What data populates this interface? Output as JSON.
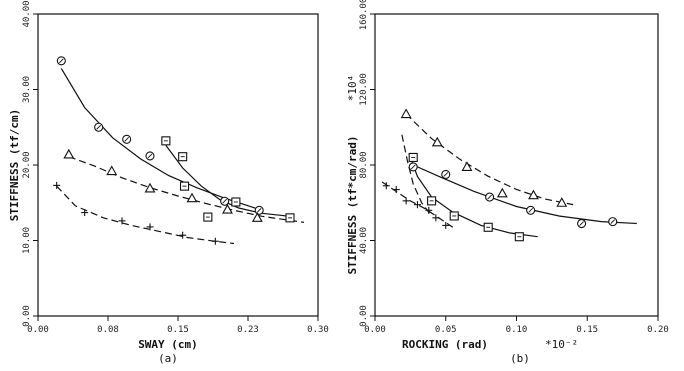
{
  "chart_data": [
    {
      "type": "scatter",
      "panel_label": "(a)",
      "xlabel": "SWAY (cm)",
      "ylabel": "STIFFNESS (tf/cm)",
      "y_multiplier": "",
      "x_multiplier": "",
      "xlim": [
        0,
        0.3
      ],
      "ylim": [
        0,
        40
      ],
      "x_ticks": [
        0,
        0.075,
        0.15,
        0.225,
        0.3
      ],
      "x_tick_labels": [
        "0.00",
        "0.08",
        "0.15",
        "0.23",
        "0.30"
      ],
      "y_ticks": [
        0,
        10,
        20,
        30,
        40
      ],
      "y_tick_labels": [
        "0.00",
        "10.00",
        "20.00",
        "30.00",
        "40.00"
      ],
      "series": [
        {
          "marker": "circle",
          "line": "solid",
          "points": [
            [
              0.025,
              33.8
            ],
            [
              0.065,
              25.0
            ],
            [
              0.095,
              23.4
            ],
            [
              0.12,
              21.2
            ],
            [
              0.2,
              15.2
            ],
            [
              0.237,
              14.0
            ]
          ],
          "curve": [
            [
              0.025,
              32.8
            ],
            [
              0.05,
              27.6
            ],
            [
              0.08,
              23.6
            ],
            [
              0.11,
              20.8
            ],
            [
              0.14,
              18.6
            ],
            [
              0.17,
              17.0
            ],
            [
              0.2,
              15.6
            ],
            [
              0.235,
              14.2
            ]
          ]
        },
        {
          "marker": "square",
          "line": "solid",
          "points": [
            [
              0.137,
              23.2
            ],
            [
              0.155,
              21.1
            ],
            [
              0.157,
              17.2
            ],
            [
              0.182,
              13.1
            ],
            [
              0.212,
              15.1
            ],
            [
              0.27,
              13.0
            ]
          ],
          "curve": [
            [
              0.137,
              22.6
            ],
            [
              0.155,
              19.6
            ],
            [
              0.175,
              17.2
            ],
            [
              0.195,
              15.4
            ],
            [
              0.215,
              14.3
            ],
            [
              0.24,
              13.6
            ],
            [
              0.27,
              13.2
            ]
          ]
        },
        {
          "marker": "triangle",
          "line": "dashed",
          "points": [
            [
              0.033,
              21.4
            ],
            [
              0.079,
              19.2
            ],
            [
              0.12,
              16.9
            ],
            [
              0.165,
              15.6
            ],
            [
              0.203,
              14.1
            ],
            [
              0.235,
              13.0
            ]
          ],
          "curve": [
            [
              0.033,
              21.1
            ],
            [
              0.06,
              19.9
            ],
            [
              0.09,
              18.3
            ],
            [
              0.12,
              17.0
            ],
            [
              0.15,
              15.9
            ],
            [
              0.18,
              14.9
            ],
            [
              0.21,
              14.0
            ],
            [
              0.24,
              13.2
            ],
            [
              0.285,
              12.4
            ]
          ]
        },
        {
          "marker": "plus",
          "line": "dashed",
          "points": [
            [
              0.02,
              17.3
            ],
            [
              0.05,
              13.7
            ],
            [
              0.09,
              12.6
            ],
            [
              0.12,
              11.8
            ],
            [
              0.155,
              10.7
            ],
            [
              0.19,
              9.9
            ]
          ],
          "curve": [
            [
              0.02,
              17.2
            ],
            [
              0.04,
              14.6
            ],
            [
              0.07,
              13.0
            ],
            [
              0.1,
              12.0
            ],
            [
              0.13,
              11.2
            ],
            [
              0.16,
              10.4
            ],
            [
              0.19,
              9.9
            ],
            [
              0.21,
              9.6
            ]
          ]
        }
      ]
    },
    {
      "type": "scatter",
      "panel_label": "(b)",
      "xlabel": "ROCKING (rad)",
      "ylabel": "STIFFNESS (tf*cm/rad)",
      "y_multiplier": "*10⁴",
      "x_multiplier": "*10⁻²",
      "xlim": [
        0,
        0.2
      ],
      "ylim": [
        0,
        160
      ],
      "x_ticks": [
        0,
        0.05,
        0.1,
        0.15,
        0.2
      ],
      "x_tick_labels": [
        "0.00",
        "0.05",
        "0.10",
        "0.15",
        "0.20"
      ],
      "y_ticks": [
        0,
        40,
        80,
        120,
        160
      ],
      "y_tick_labels": [
        "0.00",
        "40.00",
        "80.00",
        "120.00",
        "160.00"
      ],
      "series": [
        {
          "marker": "triangle",
          "line": "dashed",
          "points": [
            [
              0.022,
              107
            ],
            [
              0.044,
              92
            ],
            [
              0.065,
              79
            ],
            [
              0.09,
              65
            ],
            [
              0.112,
              64
            ],
            [
              0.132,
              60
            ]
          ],
          "curve": [
            [
              0.022,
              107
            ],
            [
              0.04,
              94
            ],
            [
              0.06,
              83
            ],
            [
              0.08,
              74
            ],
            [
              0.1,
              67
            ],
            [
              0.12,
              62
            ],
            [
              0.14,
              59
            ]
          ]
        },
        {
          "marker": "circle",
          "line": "solid",
          "points": [
            [
              0.027,
              79
            ],
            [
              0.05,
              75
            ],
            [
              0.081,
              63
            ],
            [
              0.11,
              56
            ],
            [
              0.146,
              49
            ],
            [
              0.168,
              50
            ]
          ],
          "curve": [
            [
              0.027,
              80
            ],
            [
              0.045,
              74
            ],
            [
              0.07,
              66
            ],
            [
              0.1,
              58
            ],
            [
              0.13,
              53
            ],
            [
              0.16,
              50
            ],
            [
              0.185,
              49
            ]
          ]
        },
        {
          "marker": "square",
          "line": "solid",
          "points": [
            [
              0.027,
              84
            ],
            [
              0.04,
              61
            ],
            [
              0.056,
              53
            ],
            [
              0.08,
              47
            ],
            [
              0.102,
              42
            ]
          ],
          "curve": [
            [
              0.024,
              86
            ],
            [
              0.03,
              74
            ],
            [
              0.04,
              63
            ],
            [
              0.055,
              55
            ],
            [
              0.075,
              48
            ],
            [
              0.095,
              44
            ],
            [
              0.115,
              42
            ]
          ]
        },
        {
          "marker": "plus",
          "line": "dashed",
          "points": [
            [
              0.008,
              69
            ],
            [
              0.015,
              67
            ],
            [
              0.022,
              61
            ],
            [
              0.03,
              59
            ],
            [
              0.038,
              56
            ],
            [
              0.043,
              52
            ],
            [
              0.05,
              48
            ]
          ],
          "curve": [
            [
              0.005,
              71
            ],
            [
              0.015,
              66
            ],
            [
              0.025,
              61
            ],
            [
              0.035,
              57
            ],
            [
              0.045,
              52
            ],
            [
              0.055,
              47
            ]
          ]
        },
        {
          "marker": "none",
          "line": "dashed",
          "points": [],
          "curve": [
            [
              0.019,
              96
            ],
            [
              0.023,
              82
            ],
            [
              0.027,
              70
            ],
            [
              0.033,
              60
            ],
            [
              0.04,
              53
            ]
          ]
        }
      ]
    }
  ]
}
